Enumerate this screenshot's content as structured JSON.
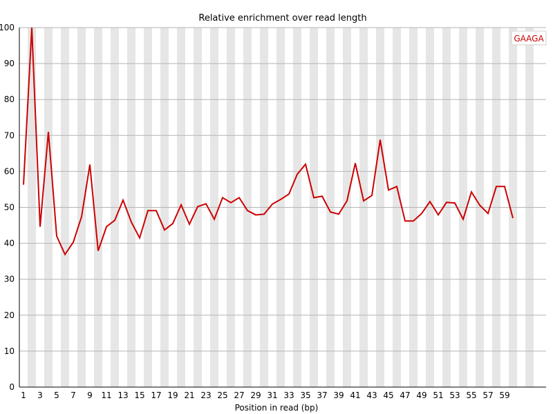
{
  "chart_data": {
    "type": "line",
    "title": "Relative enrichment over read length",
    "xlabel": "Position in read (bp)",
    "ylabel": "",
    "xlim": [
      1,
      60
    ],
    "ylim": [
      0,
      100
    ],
    "yticks": [
      0,
      10,
      20,
      30,
      40,
      50,
      60,
      70,
      80,
      90,
      100
    ],
    "xtick_labels": [
      "1",
      "3",
      "5",
      "7",
      "9",
      "11",
      "13",
      "15",
      "17",
      "19",
      "21",
      "23",
      "25",
      "27",
      "29",
      "31",
      "33",
      "35",
      "37",
      "39",
      "41",
      "43",
      "45",
      "47",
      "49",
      "51",
      "53",
      "55",
      "57",
      "59"
    ],
    "grid": true,
    "alternating_column_shading": true,
    "legend_position": "top-right",
    "series": [
      {
        "name": "GAAGA",
        "color": "#cc0000",
        "x": [
          1,
          2,
          3,
          4,
          5,
          6,
          7,
          8,
          9,
          10,
          11,
          12,
          13,
          14,
          15,
          16,
          17,
          18,
          19,
          20,
          21,
          22,
          23,
          24,
          25,
          26,
          27,
          28,
          29,
          30,
          31,
          32,
          33,
          34,
          35,
          36,
          37,
          38,
          39,
          40,
          41,
          42,
          43,
          44,
          45,
          46,
          47,
          48,
          49,
          50,
          51,
          52,
          53,
          54,
          55,
          56,
          57,
          58,
          59,
          60
        ],
        "values": [
          56.3,
          100,
          44.6,
          71.0,
          42.0,
          36.9,
          40.3,
          47.4,
          61.9,
          37.9,
          44.6,
          46.4,
          52.0,
          45.9,
          41.5,
          49.1,
          49.1,
          43.7,
          45.5,
          50.7,
          45.3,
          50.2,
          51.0,
          46.7,
          52.7,
          51.3,
          52.7,
          49.1,
          47.9,
          48.1,
          50.9,
          52.2,
          53.7,
          59.2,
          62.0,
          52.7,
          53.1,
          48.7,
          48.1,
          51.8,
          62.3,
          51.8,
          53.3,
          68.8,
          54.8,
          55.8,
          46.2,
          46.2,
          48.3,
          51.6,
          47.9,
          51.4,
          51.2,
          46.7,
          54.3,
          50.6,
          48.3,
          55.8,
          55.8,
          47.0
        ]
      }
    ]
  }
}
